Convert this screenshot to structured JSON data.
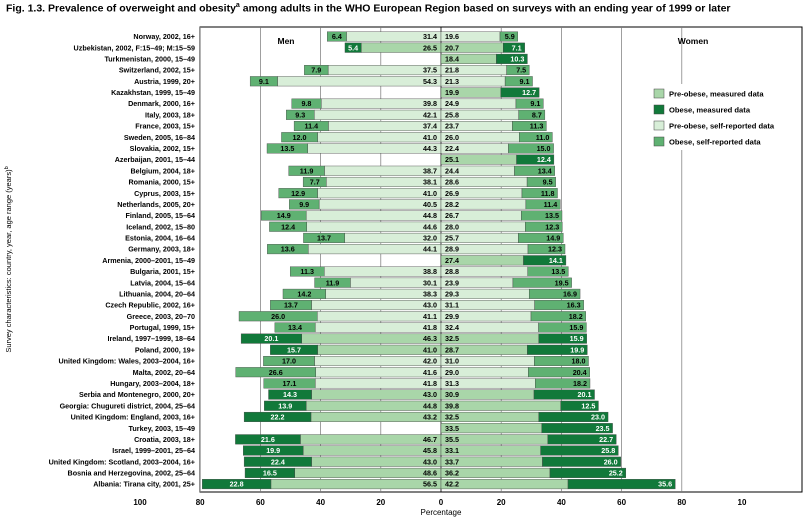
{
  "figure": {
    "title": "Fig. 1.3. Prevalence of overweight and obesity",
    "title_mark": "a",
    "title_rest": " among adults in the WHO European Region based on surveys with an ending year of 1999 or later"
  },
  "colors": {
    "pre_obese_measured": "#a9d6a9",
    "obese_measured": "#11793a",
    "pre_obese_self": "#d8eed8",
    "obese_self": "#5fb172"
  },
  "chart_data": {
    "type": "bar",
    "title": "Fig. 1.3. Prevalence of overweight and obesity",
    "xlabel": "Percentage",
    "ylabel": "Survey characteristics: country, year, age range (years)",
    "ylabel_mark": "b",
    "panels": [
      "Men",
      "Women"
    ],
    "xlim": [
      100,
      10
    ],
    "xticks": [
      "100",
      "80",
      "60",
      "40",
      "20",
      "0",
      "20",
      "40",
      "60",
      "80",
      "10"
    ],
    "legend": {
      "placement": "top-right",
      "entries": [
        {
          "name": "Pre-obese, measured data",
          "key": "pre_obese_measured"
        },
        {
          "name": "Obese, measured data",
          "key": "obese_measured"
        },
        {
          "name": "Pre-obese, self-reported data",
          "key": "pre_obese_self"
        },
        {
          "name": "Obese, self-reported data",
          "key": "obese_self"
        }
      ]
    },
    "columns": [
      "label",
      "men_obese",
      "men_pre_obese",
      "women_pre_obese",
      "women_obese",
      "measured"
    ],
    "rows": [
      [
        "Norway, 2002, 16+",
        "6.4",
        "31.4",
        "19.6",
        "5.9",
        false
      ],
      [
        "Uzbekistan, 2002, F:15–49; M:15–59",
        "5.4",
        "26.5",
        "20.7",
        "7.1",
        true
      ],
      [
        "Turkmenistan, 2000, 15–49",
        "",
        "",
        "18.4",
        "10.3",
        true
      ],
      [
        "Switzerland, 2002, 15+",
        "7.9",
        "37.5",
        "21.8",
        "7.5",
        false
      ],
      [
        "Austria, 1999, 20+",
        "9.1",
        "54.3",
        "21.3",
        "9.1",
        false
      ],
      [
        "Kazakhstan, 1999, 15–49",
        "",
        "",
        "19.9",
        "12.7",
        true
      ],
      [
        "Denmark, 2000, 16+",
        "9.8",
        "39.8",
        "24.9",
        "9.1",
        false
      ],
      [
        "Italy, 2003, 18+",
        "9.3",
        "42.1",
        "25.8",
        "8.7",
        false
      ],
      [
        "France, 2003, 15+",
        "11.4",
        "37.4",
        "23.7",
        "11.3",
        false
      ],
      [
        "Sweden, 2005, 16–84",
        "12.0",
        "41.0",
        "26.0",
        "11.0",
        false
      ],
      [
        "Slovakia, 2002, 15+",
        "13.5",
        "44.3",
        "22.4",
        "15.0",
        false
      ],
      [
        "Azerbaijan, 2001, 15–44",
        "",
        "",
        "25.1",
        "12.4",
        true
      ],
      [
        "Belgium, 2004, 18+",
        "11.9",
        "38.7",
        "24.4",
        "13.4",
        false
      ],
      [
        "Romania, 2000, 15+",
        "7.7",
        "38.1",
        "28.6",
        "9.5",
        false
      ],
      [
        "Cyprus, 2003, 15+",
        "12.9",
        "41.0",
        "26.9",
        "11.8",
        false
      ],
      [
        "Netherlands, 2005, 20+",
        "9.9",
        "40.5",
        "28.2",
        "11.4",
        false
      ],
      [
        "Finland, 2005, 15–64",
        "14.9",
        "44.8",
        "26.7",
        "13.5",
        false
      ],
      [
        "Iceland, 2002, 15–80",
        "12.4",
        "44.6",
        "28.0",
        "12.3",
        false
      ],
      [
        "Estonia, 2004, 16–64",
        "13.7",
        "32.0",
        "25.7",
        "14.9",
        false
      ],
      [
        "Germany, 2003, 18+",
        "13.6",
        "44.1",
        "28.9",
        "12.3",
        false
      ],
      [
        "Armenia, 2000–2001, 15–49",
        "",
        "",
        "27.4",
        "14.1",
        true
      ],
      [
        "Bulgaria, 2001, 15+",
        "11.3",
        "38.8",
        "28.8",
        "13.5",
        false
      ],
      [
        "Latvia, 2004, 15–64",
        "11.9",
        "30.1",
        "23.9",
        "19.5",
        false
      ],
      [
        "Lithuania, 2004, 20–64",
        "14.2",
        "38.3",
        "29.3",
        "16.9",
        false
      ],
      [
        "Czech Republic, 2002, 16+",
        "13.7",
        "43.0",
        "31.1",
        "16.3",
        false
      ],
      [
        "Greece, 2003, 20–70",
        "26.0",
        "41.1",
        "29.9",
        "18.2",
        false
      ],
      [
        "Portugal, 1999, 15+",
        "13.4",
        "41.8",
        "32.4",
        "15.9",
        false
      ],
      [
        "Ireland, 1997–1999, 18–64",
        "20.1",
        "46.3",
        "32.5",
        "15.9",
        true
      ],
      [
        "Poland, 2000, 19+",
        "15.7",
        "41.0",
        "28.7",
        "19.9",
        true
      ],
      [
        "United Kingdom: Wales, 2003–2004, 16+",
        "17.0",
        "42.0",
        "31.0",
        "18.0",
        false
      ],
      [
        "Malta, 2002, 20–64",
        "26.6",
        "41.6",
        "29.0",
        "20.4",
        false
      ],
      [
        "Hungary, 2003–2004, 18+",
        "17.1",
        "41.8",
        "31.3",
        "18.2",
        false
      ],
      [
        "Serbia and Montenegro, 2000, 20+",
        "14.3",
        "43.0",
        "30.9",
        "20.1",
        true
      ],
      [
        "Georgia: Chugureti district, 2004, 25–64",
        "13.9",
        "44.8",
        "39.8",
        "12.5",
        true
      ],
      [
        "United Kingdom: England, 2003, 16+",
        "22.2",
        "43.2",
        "32.5",
        "23.0",
        true
      ],
      [
        "Turkey, 2003, 15–49",
        "",
        "",
        "33.5",
        "23.5",
        true
      ],
      [
        "Croatia, 2003, 18+",
        "21.6",
        "46.7",
        "35.5",
        "22.7",
        true
      ],
      [
        "Israel, 1999–2001, 25–64",
        "19.9",
        "45.8",
        "33.1",
        "25.8",
        true
      ],
      [
        "United Kingdom: Scotland, 2003–2004, 16+",
        "22.4",
        "43.0",
        "33.7",
        "26.0",
        true
      ],
      [
        "Bosnia and Herzegovina, 2002, 25–64",
        "16.5",
        "48.6",
        "36.2",
        "25.2",
        true
      ],
      [
        "Albania: Tirana city, 2001, 25+",
        "22.8",
        "56.5",
        "42.2",
        "35.6",
        true
      ]
    ]
  }
}
